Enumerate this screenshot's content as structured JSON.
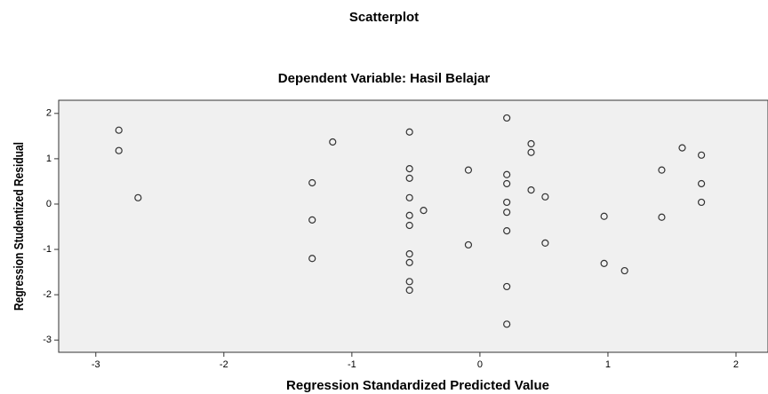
{
  "chart_data": {
    "type": "scatter",
    "title": "Scatterplot",
    "subtitle": "Dependent Variable: Hasil Belajar",
    "x_label": "Regression Standardized Predicted Value",
    "y_label": "Regression Studentized Residual",
    "xlim": [
      -3.29,
      2.25
    ],
    "ylim": [
      -3.27,
      2.29
    ],
    "xticks": [
      -3,
      -2,
      -1,
      0,
      1,
      2
    ],
    "yticks": [
      -3,
      -2,
      -1,
      0,
      1,
      2
    ],
    "color": "#333333",
    "background": "#f0f0f0",
    "x": [
      -2.82,
      -2.82,
      -2.67,
      -1.15,
      -1.31,
      -1.31,
      -1.31,
      -0.55,
      -0.55,
      -0.55,
      -0.55,
      -0.55,
      -0.55,
      -0.55,
      -0.55,
      -0.55,
      -0.55,
      -0.44,
      -0.09,
      -0.09,
      0.21,
      0.21,
      0.21,
      0.21,
      0.21,
      0.21,
      0.21,
      0.21,
      0.4,
      0.4,
      0.4,
      0.51,
      0.51,
      0.97,
      0.97,
      1.13,
      1.42,
      1.42,
      1.58,
      1.73,
      1.73,
      1.73
    ],
    "values": [
      1.63,
      1.18,
      0.14,
      1.37,
      0.47,
      -0.35,
      -1.2,
      1.59,
      0.78,
      0.57,
      0.14,
      -0.25,
      -0.47,
      -1.1,
      -1.29,
      -1.71,
      -1.9,
      -0.14,
      0.75,
      -0.9,
      1.9,
      0.65,
      0.45,
      0.04,
      -0.18,
      -0.59,
      -1.82,
      -2.65,
      1.33,
      1.14,
      0.31,
      0.16,
      -0.86,
      -0.27,
      -1.31,
      -1.47,
      0.75,
      -0.29,
      1.24,
      1.08,
      0.45,
      0.04
    ]
  }
}
